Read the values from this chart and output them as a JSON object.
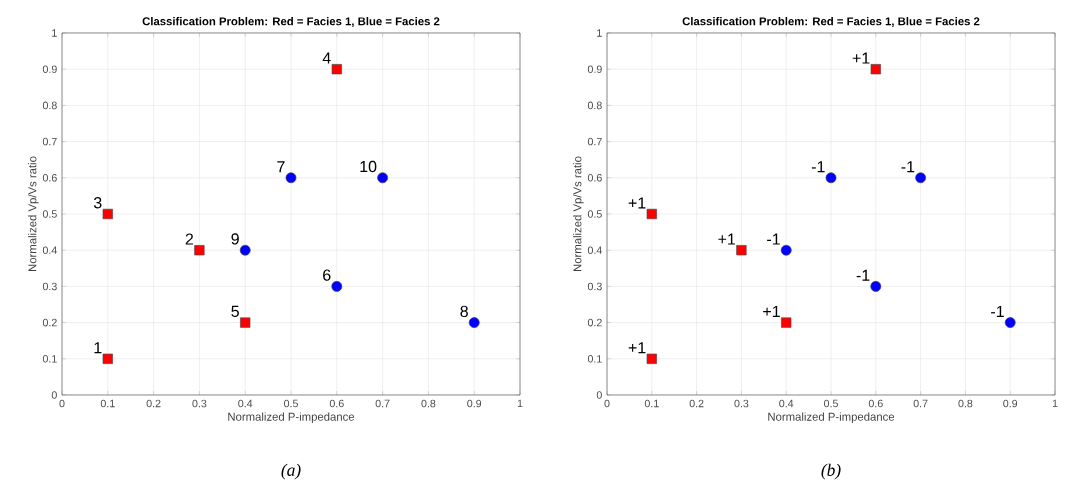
{
  "chart_data": [
    {
      "type": "scatter",
      "title": "Classification Problem: Red = Facies 1, Blue = Facies 2",
      "xlabel": "Normalized P-impedance",
      "ylabel": "Normalized Vp/Vs ratio",
      "xlim": [
        0,
        1
      ],
      "ylim": [
        0,
        1
      ],
      "xticks": [
        0,
        0.1,
        0.2,
        0.3,
        0.4,
        0.5,
        0.6,
        0.7,
        0.8,
        0.9,
        1
      ],
      "yticks": [
        0,
        0.1,
        0.2,
        0.3,
        0.4,
        0.5,
        0.6,
        0.7,
        0.8,
        0.9,
        1
      ],
      "grid": true,
      "series": [
        {
          "color": "#ff0000",
          "marker": "square",
          "x": [
            0.1,
            0.3,
            0.1,
            0.6,
            0.4
          ],
          "values": [
            0.1,
            0.4,
            0.5,
            0.9,
            0.2
          ]
        },
        {
          "color": "#0000ff",
          "marker": "circle",
          "x": [
            0.6,
            0.5,
            0.9,
            0.4,
            0.7
          ],
          "values": [
            0.3,
            0.6,
            0.2,
            0.4,
            0.6
          ]
        }
      ],
      "annotations": [
        {
          "text": "1",
          "x": 0.1,
          "y": 0.1
        },
        {
          "text": "2",
          "x": 0.3,
          "y": 0.4
        },
        {
          "text": "3",
          "x": 0.1,
          "y": 0.5
        },
        {
          "text": "4",
          "x": 0.6,
          "y": 0.9
        },
        {
          "text": "5",
          "x": 0.4,
          "y": 0.2
        },
        {
          "text": "6",
          "x": 0.6,
          "y": 0.3
        },
        {
          "text": "7",
          "x": 0.5,
          "y": 0.6
        },
        {
          "text": "8",
          "x": 0.9,
          "y": 0.2
        },
        {
          "text": "9",
          "x": 0.4,
          "y": 0.4
        },
        {
          "text": "10",
          "x": 0.7,
          "y": 0.6
        },
        "(a)"
      ]
    },
    {
      "type": "scatter",
      "title": "Classification Problem: Red = Facies 1, Blue = Facies 2",
      "xlabel": "Normalized P-impedance",
      "ylabel": "Normalized Vp/Vs ratio",
      "xlim": [
        0,
        1
      ],
      "ylim": [
        0,
        1
      ],
      "xticks": [
        0,
        0.1,
        0.2,
        0.3,
        0.4,
        0.5,
        0.6,
        0.7,
        0.8,
        0.9,
        1
      ],
      "yticks": [
        0,
        0.1,
        0.2,
        0.3,
        0.4,
        0.5,
        0.6,
        0.7,
        0.8,
        0.9,
        1
      ],
      "grid": true,
      "series": [
        {
          "color": "#ff0000",
          "marker": "square",
          "x": [
            0.1,
            0.3,
            0.1,
            0.6,
            0.4
          ],
          "values": [
            0.1,
            0.4,
            0.5,
            0.9,
            0.2
          ]
        },
        {
          "color": "#0000ff",
          "marker": "circle",
          "x": [
            0.6,
            0.5,
            0.9,
            0.4,
            0.7
          ],
          "values": [
            0.3,
            0.6,
            0.2,
            0.4,
            0.6
          ]
        }
      ],
      "annotations": [
        {
          "text": "+1",
          "x": 0.1,
          "y": 0.1
        },
        {
          "text": "+1",
          "x": 0.3,
          "y": 0.4
        },
        {
          "text": "+1",
          "x": 0.1,
          "y": 0.5
        },
        {
          "text": "+1",
          "x": 0.6,
          "y": 0.9
        },
        {
          "text": "+1",
          "x": 0.4,
          "y": 0.2
        },
        {
          "text": "-1",
          "x": 0.6,
          "y": 0.3
        },
        {
          "text": "-1",
          "x": 0.5,
          "y": 0.6
        },
        {
          "text": "-1",
          "x": 0.9,
          "y": 0.2
        },
        {
          "text": "-1",
          "x": 0.4,
          "y": 0.4
        },
        {
          "text": "-1",
          "x": 0.7,
          "y": 0.6
        },
        "(b)"
      ]
    }
  ]
}
